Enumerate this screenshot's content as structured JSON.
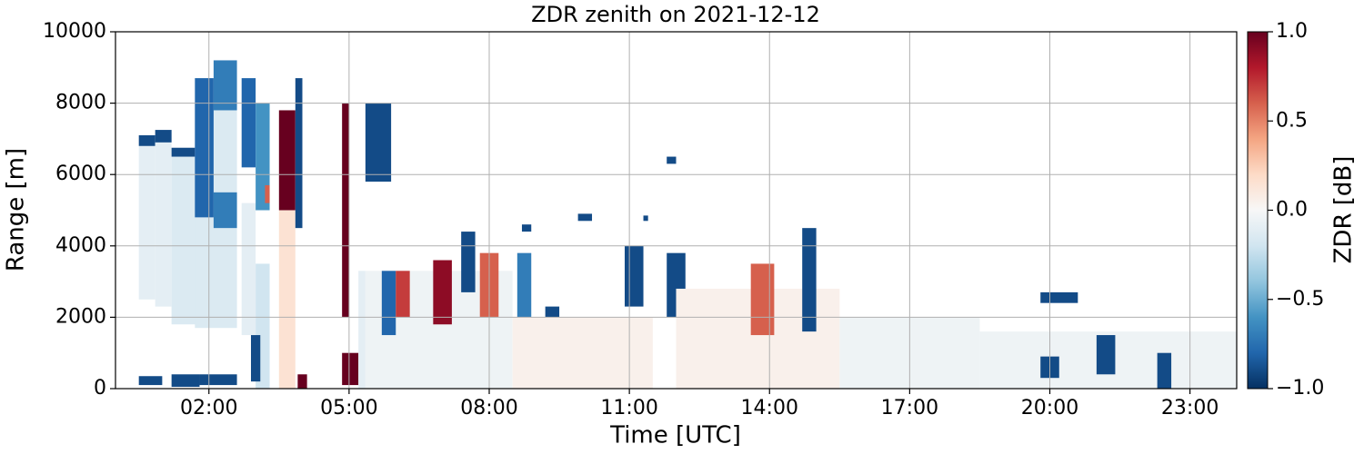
{
  "chart_data": {
    "type": "heatmap",
    "title": "ZDR zenith on 2021-12-12",
    "x_label": "Time [UTC]",
    "y_label": "Range [m]",
    "colorbar_label": "ZDR [dB]",
    "xlim": [
      0,
      24
    ],
    "xticks": [
      {
        "value": 2,
        "label": "02:00"
      },
      {
        "value": 5,
        "label": "05:00"
      },
      {
        "value": 8,
        "label": "08:00"
      },
      {
        "value": 11,
        "label": "11:00"
      },
      {
        "value": 14,
        "label": "14:00"
      },
      {
        "value": 17,
        "label": "17:00"
      },
      {
        "value": 20,
        "label": "20:00"
      },
      {
        "value": 23,
        "label": "23:00"
      }
    ],
    "ylim": [
      0,
      10000
    ],
    "yticks": [
      0,
      2000,
      4000,
      6000,
      8000,
      10000
    ],
    "clim": [
      -1,
      1
    ],
    "cticks": [
      {
        "value": -1,
        "label": "−1.0"
      },
      {
        "value": -0.5,
        "label": "−0.5"
      },
      {
        "value": 0,
        "label": "0.0"
      },
      {
        "value": 0.5,
        "label": "0.5"
      },
      {
        "value": 1,
        "label": "1.0"
      }
    ],
    "colormap": [
      "#053061",
      "#2166ac",
      "#4393c3",
      "#92c5de",
      "#d1e5f0",
      "#f7f7f7",
      "#fddbc7",
      "#f4a582",
      "#d6604d",
      "#b2182b",
      "#67001f"
    ],
    "grid": true,
    "cells": [
      [
        0.5,
        0.85,
        2500,
        6800,
        -0.1
      ],
      [
        0.5,
        0.85,
        6800,
        7100,
        -0.9
      ],
      [
        0.85,
        1.2,
        2300,
        6900,
        -0.1
      ],
      [
        0.85,
        1.2,
        6900,
        7250,
        -0.9
      ],
      [
        1.2,
        1.75,
        1800,
        6500,
        -0.15
      ],
      [
        1.2,
        1.75,
        6500,
        6750,
        -0.9
      ],
      [
        0.5,
        1.0,
        100,
        350,
        -0.9
      ],
      [
        1.2,
        1.8,
        50,
        400,
        -0.9
      ],
      [
        1.7,
        2.6,
        1700,
        8000,
        -0.15
      ],
      [
        1.7,
        2.1,
        4800,
        8700,
        -0.8
      ],
      [
        2.1,
        2.6,
        7800,
        9200,
        -0.7
      ],
      [
        2.1,
        2.6,
        4500,
        5500,
        -0.7
      ],
      [
        1.8,
        2.6,
        100,
        400,
        -0.9
      ],
      [
        2.7,
        3.0,
        1500,
        5200,
        -0.1
      ],
      [
        2.7,
        3.0,
        6200,
        8700,
        -0.8
      ],
      [
        3.0,
        3.3,
        5000,
        8000,
        -0.6
      ],
      [
        3.0,
        3.3,
        0,
        3500,
        -0.2
      ],
      [
        2.9,
        3.1,
        200,
        1500,
        -0.9
      ],
      [
        3.2,
        3.3,
        5200,
        5700,
        0.6
      ],
      [
        3.5,
        3.85,
        0,
        5000,
        0.15
      ],
      [
        3.5,
        3.85,
        5000,
        7800,
        1.0
      ],
      [
        3.85,
        4.0,
        4500,
        8700,
        -0.9
      ],
      [
        3.9,
        4.1,
        0,
        400,
        1.0
      ],
      [
        4.85,
        5.0,
        2000,
        8000,
        1.0
      ],
      [
        4.85,
        5.2,
        100,
        1000,
        1.0
      ],
      [
        5.2,
        5.35,
        0,
        3300,
        -0.1
      ],
      [
        5.35,
        5.9,
        5800,
        8000,
        -0.9
      ],
      [
        5.35,
        8.5,
        0,
        3300,
        -0.05
      ],
      [
        5.7,
        6.0,
        1500,
        3300,
        -0.8
      ],
      [
        6.0,
        6.3,
        2000,
        3300,
        0.7
      ],
      [
        6.8,
        7.2,
        1800,
        3600,
        0.9
      ],
      [
        7.4,
        7.7,
        2700,
        4400,
        -0.9
      ],
      [
        7.8,
        8.2,
        2000,
        3800,
        0.6
      ],
      [
        8.6,
        8.9,
        500,
        3800,
        -0.7
      ],
      [
        9.2,
        9.5,
        1000,
        2300,
        -0.9
      ],
      [
        8.5,
        11.5,
        0,
        2000,
        0.05
      ],
      [
        10.9,
        11.3,
        2300,
        4000,
        -0.9
      ],
      [
        11.8,
        12.2,
        2000,
        3800,
        -0.9
      ],
      [
        12.0,
        15.5,
        0,
        2800,
        0.05
      ],
      [
        13.6,
        14.1,
        1500,
        3500,
        0.6
      ],
      [
        14.7,
        15.0,
        1600,
        4500,
        -0.9
      ],
      [
        15.5,
        18.5,
        0,
        2000,
        -0.05
      ],
      [
        18.5,
        24,
        0,
        1600,
        -0.05
      ],
      [
        19.8,
        20.6,
        2400,
        2700,
        -0.9
      ],
      [
        19.8,
        20.2,
        300,
        900,
        -0.9
      ],
      [
        21.0,
        21.4,
        400,
        1500,
        -0.9
      ],
      [
        22.3,
        22.6,
        0,
        1000,
        -0.9
      ],
      [
        11.8,
        12.0,
        6300,
        6500,
        -0.9
      ],
      [
        9.9,
        10.2,
        4700,
        4900,
        -0.9
      ],
      [
        8.7,
        8.9,
        4400,
        4600,
        -0.9
      ],
      [
        11.3,
        11.4,
        4700,
        4850,
        -0.9
      ]
    ]
  }
}
